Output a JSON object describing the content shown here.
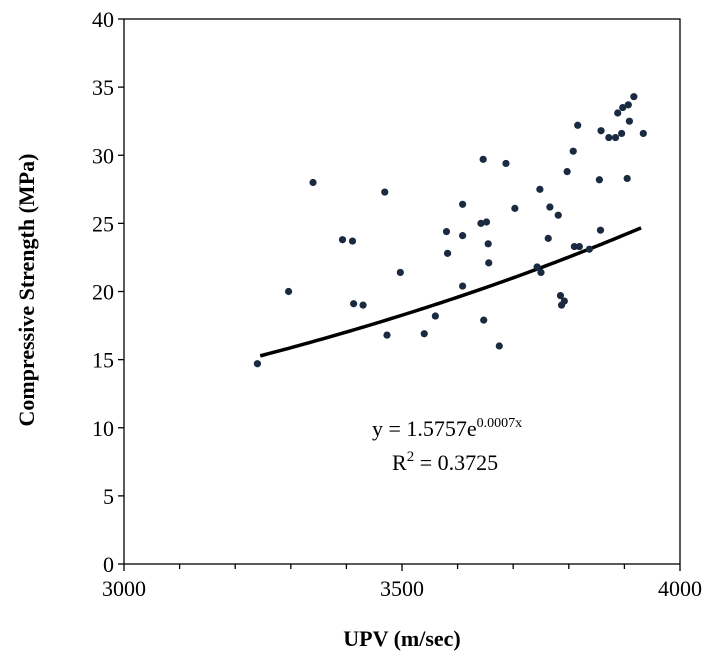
{
  "chart_data": {
    "type": "scatter",
    "title": "",
    "xlabel": "UPV (m/sec)",
    "ylabel": "Compressive Strength (MPa)",
    "xlim": [
      3000,
      4000
    ],
    "ylim": [
      0,
      40
    ],
    "xticks": [
      3000,
      3500,
      4000
    ],
    "yticks": [
      0,
      5,
      10,
      15,
      20,
      25,
      30,
      35,
      40
    ],
    "grid": false,
    "legend": "none",
    "point_color": "#1a2a40",
    "trend_color": "#000000",
    "points": [
      [
        3240,
        14.7
      ],
      [
        3296,
        20.0
      ],
      [
        3340,
        28.0
      ],
      [
        3393,
        23.8
      ],
      [
        3411,
        23.7
      ],
      [
        3413,
        19.1
      ],
      [
        3430,
        19.0
      ],
      [
        3469,
        27.3
      ],
      [
        3473,
        16.8
      ],
      [
        3497,
        21.4
      ],
      [
        3540,
        16.9
      ],
      [
        3560,
        18.2
      ],
      [
        3580,
        24.4
      ],
      [
        3582,
        22.8
      ],
      [
        3609,
        26.4
      ],
      [
        3609,
        24.1
      ],
      [
        3609,
        20.4
      ],
      [
        3642,
        25.0
      ],
      [
        3646,
        29.7
      ],
      [
        3647,
        17.9
      ],
      [
        3652,
        25.1
      ],
      [
        3655,
        23.5
      ],
      [
        3656,
        22.1
      ],
      [
        3675,
        16.0
      ],
      [
        3687,
        29.4
      ],
      [
        3703,
        26.1
      ],
      [
        3743,
        21.8
      ],
      [
        3748,
        27.5
      ],
      [
        3750,
        21.4
      ],
      [
        3763,
        23.9
      ],
      [
        3766,
        26.2
      ],
      [
        3781,
        25.6
      ],
      [
        3785,
        19.7
      ],
      [
        3787,
        19.0
      ],
      [
        3792,
        19.3
      ],
      [
        3797,
        28.8
      ],
      [
        3808,
        30.3
      ],
      [
        3810,
        23.3
      ],
      [
        3816,
        32.2
      ],
      [
        3819,
        23.3
      ],
      [
        3837,
        23.1
      ],
      [
        3855,
        28.2
      ],
      [
        3857,
        24.5
      ],
      [
        3858,
        31.8
      ],
      [
        3872,
        31.3
      ],
      [
        3884,
        31.3
      ],
      [
        3888,
        33.1
      ],
      [
        3895,
        31.6
      ],
      [
        3897,
        33.5
      ],
      [
        3905,
        28.3
      ],
      [
        3907,
        33.7
      ],
      [
        3909,
        32.5
      ],
      [
        3917,
        34.3
      ],
      [
        3934,
        31.6
      ]
    ],
    "trendline": {
      "type": "exponential",
      "a": 1.5757,
      "b": 0.0007,
      "x_range": [
        3245,
        3930
      ]
    },
    "annotations": {
      "equation_prefix": "y = 1.5757e",
      "equation_exponent": "0.0007x",
      "r2_prefix": "R",
      "r2_exponent": "2",
      "r2_suffix": " = 0.3725"
    }
  }
}
